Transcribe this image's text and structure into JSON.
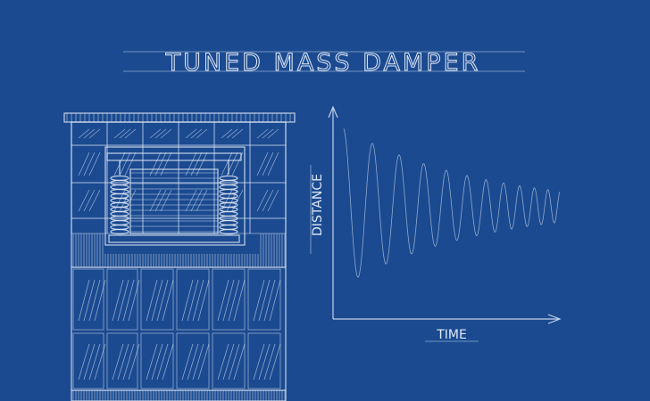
{
  "title": "TUNED MASS DAMPER",
  "graph": {
    "y_label": "DISTANCE",
    "x_label": "TIME"
  }
}
